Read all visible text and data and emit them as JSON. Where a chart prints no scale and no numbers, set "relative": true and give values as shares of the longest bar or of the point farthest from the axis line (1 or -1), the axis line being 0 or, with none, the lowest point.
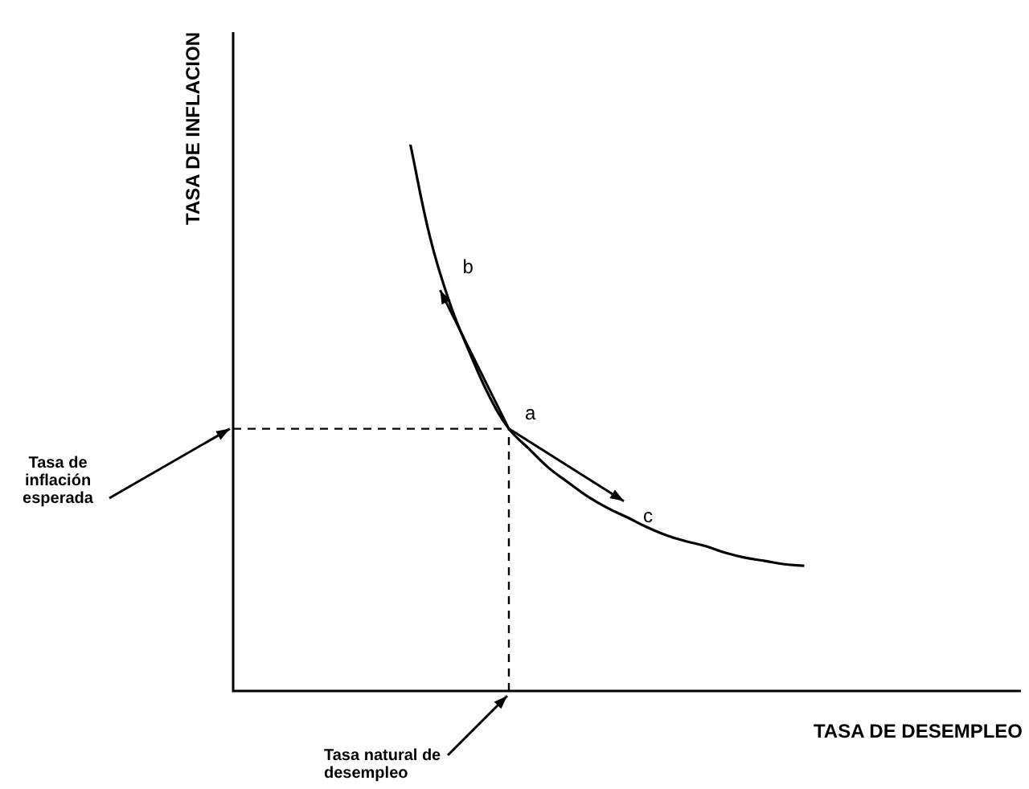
{
  "chart_data": {
    "type": "line",
    "relative": true,
    "xlabel": "TASA DE DESEMPLEO",
    "ylabel": "TASA DE INFLACION",
    "categories": [
      null,
      null,
      null,
      null,
      null,
      null,
      null,
      null,
      null,
      null,
      null,
      null,
      null,
      null,
      null,
      null,
      null,
      null,
      null,
      null,
      null,
      null,
      null,
      null,
      null,
      null,
      null,
      null,
      null,
      null,
      null,
      null,
      null,
      null,
      null,
      null,
      null,
      null,
      null,
      null,
      null
    ],
    "series": [
      {
        "color": "#000000",
        "values": [
          null,
          null,
          null,
          null,
          null,
          null,
          null,
          null,
          null,
          1,
          0.83,
          0.71,
          0.62,
          0.54,
          0.48,
          0.444,
          0.409,
          0.382,
          0.356,
          0.335,
          0.318,
          0.3,
          0.285,
          0.274,
          0.265,
          0.253,
          0.244,
          0.238,
          0.232,
          0.229,
          null,
          null,
          null,
          null,
          null,
          null,
          null,
          null,
          null,
          null,
          null
        ]
      }
    ],
    "ref_lines": [
      {
        "axis": "y",
        "value": 0.48,
        "label": "Tasa de inflación esperada",
        "line_style": "dashed"
      }
    ],
    "annotations": [
      "a",
      "b",
      "c",
      "Tasa natural de desempleo"
    ],
    "marker": "none"
  }
}
